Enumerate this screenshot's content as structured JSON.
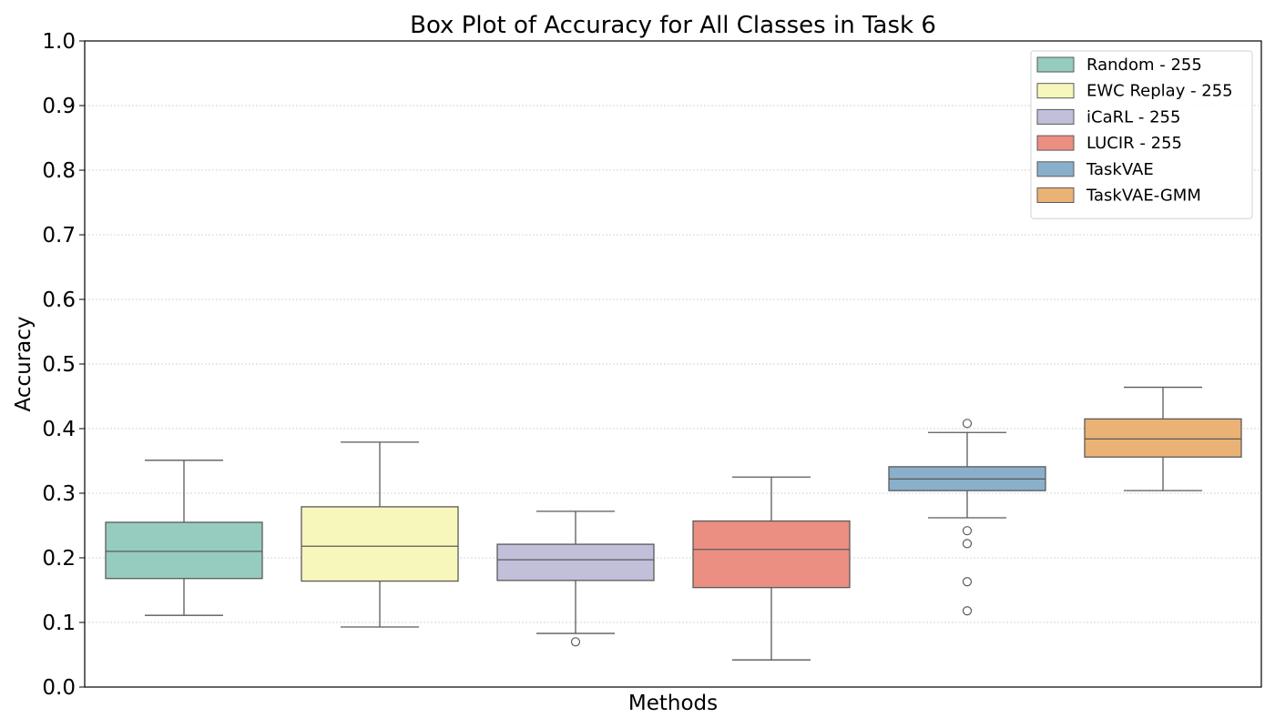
{
  "chart_data": {
    "type": "box",
    "title": "Box Plot of Accuracy for All Classes in Task 6",
    "xlabel": "Methods",
    "ylabel": "Accuracy",
    "ylim": [
      0,
      1
    ],
    "yticks": [
      "0.0",
      "0.1",
      "0.2",
      "0.3",
      "0.4",
      "0.5",
      "0.6",
      "0.7",
      "0.8",
      "0.9",
      "1.0"
    ],
    "grid": "horizontal dotted",
    "legend_position": "top-right",
    "series": [
      {
        "name": "Random - 255",
        "color": "#96cbc0",
        "whisker_low": 0.111,
        "q1": 0.168,
        "median": 0.21,
        "q3": 0.255,
        "whisker_high": 0.351,
        "outliers": []
      },
      {
        "name": "EWC Replay - 255",
        "color": "#f7f7bb",
        "whisker_low": 0.093,
        "q1": 0.164,
        "median": 0.218,
        "q3": 0.279,
        "whisker_high": 0.379,
        "outliers": []
      },
      {
        "name": "iCaRL - 255",
        "color": "#c1bfd9",
        "whisker_low": 0.083,
        "q1": 0.165,
        "median": 0.197,
        "q3": 0.221,
        "whisker_high": 0.272,
        "outliers": [
          0.07
        ]
      },
      {
        "name": "LUCIR - 255",
        "color": "#ea8f82",
        "whisker_low": 0.042,
        "q1": 0.154,
        "median": 0.213,
        "q3": 0.257,
        "whisker_high": 0.325,
        "outliers": []
      },
      {
        "name": "TaskVAE",
        "color": "#8aafca",
        "whisker_low": 0.262,
        "q1": 0.304,
        "median": 0.322,
        "q3": 0.341,
        "whisker_high": 0.394,
        "outliers": [
          0.408,
          0.242,
          0.222,
          0.163,
          0.118
        ]
      },
      {
        "name": "TaskVAE-GMM",
        "color": "#ebb275",
        "whisker_low": 0.304,
        "q1": 0.356,
        "median": 0.384,
        "q3": 0.415,
        "whisker_high": 0.464,
        "outliers": []
      }
    ]
  }
}
